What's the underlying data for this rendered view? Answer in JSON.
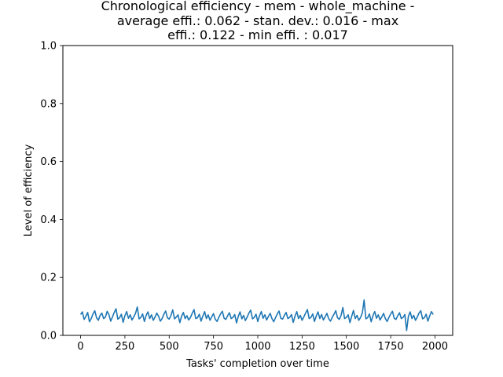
{
  "chart_data": {
    "type": "line",
    "title_lines": [
      "Chronological efficiency - mem - whole_machine -",
      "average effi.: 0.062 - stan. dev.: 0.016 - max",
      "effi.: 0.122 - min effi. : 0.017"
    ],
    "xlabel": "Tasks' completion over time",
    "ylabel": "Level of efficiency",
    "xlim": [
      -100,
      2100
    ],
    "ylim": [
      0,
      1.0
    ],
    "x_ticks": [
      0,
      250,
      500,
      750,
      1000,
      1250,
      1500,
      1750,
      2000
    ],
    "y_ticks": [
      0.0,
      0.2,
      0.4,
      0.6,
      0.8,
      1.0
    ],
    "y_tick_labels": [
      "0.0",
      "0.2",
      "0.4",
      "0.6",
      "0.8",
      "1.0"
    ],
    "grid": false,
    "series": [
      {
        "color": "#1f77b4",
        "x_start": 0,
        "x_step": 10,
        "values": [
          0.072,
          0.081,
          0.055,
          0.066,
          0.079,
          0.047,
          0.058,
          0.074,
          0.085,
          0.061,
          0.052,
          0.069,
          0.077,
          0.058,
          0.063,
          0.083,
          0.071,
          0.049,
          0.064,
          0.079,
          0.092,
          0.056,
          0.061,
          0.073,
          0.045,
          0.068,
          0.082,
          0.059,
          0.071,
          0.053,
          0.064,
          0.076,
          0.098,
          0.057,
          0.062,
          0.074,
          0.048,
          0.069,
          0.081,
          0.058,
          0.071,
          0.052,
          0.063,
          0.077,
          0.066,
          0.049,
          0.058,
          0.073,
          0.084,
          0.061,
          0.056,
          0.069,
          0.088,
          0.057,
          0.063,
          0.071,
          0.044,
          0.066,
          0.079,
          0.058,
          0.068,
          0.053,
          0.062,
          0.076,
          0.089,
          0.058,
          0.061,
          0.073,
          0.049,
          0.067,
          0.082,
          0.058,
          0.071,
          0.052,
          0.064,
          0.075,
          0.056,
          0.048,
          0.062,
          0.074,
          0.083,
          0.059,
          0.055,
          0.068,
          0.078,
          0.058,
          0.062,
          0.072,
          0.043,
          0.066,
          0.081,
          0.057,
          0.069,
          0.051,
          0.063,
          0.077,
          0.087,
          0.057,
          0.062,
          0.073,
          0.048,
          0.068,
          0.082,
          0.059,
          0.071,
          0.053,
          0.065,
          0.076,
          0.058,
          0.047,
          0.061,
          0.074,
          0.084,
          0.059,
          0.056,
          0.069,
          0.079,
          0.058,
          0.062,
          0.072,
          0.045,
          0.066,
          0.082,
          0.058,
          0.069,
          0.052,
          0.064,
          0.077,
          0.089,
          0.058,
          0.062,
          0.074,
          0.048,
          0.067,
          0.081,
          0.058,
          0.072,
          0.053,
          0.064,
          0.076,
          0.058,
          0.049,
          0.062,
          0.073,
          0.085,
          0.061,
          0.055,
          0.069,
          0.096,
          0.058,
          0.062,
          0.071,
          0.044,
          0.066,
          0.086,
          0.058,
          0.069,
          0.052,
          0.062,
          0.077,
          0.122,
          0.057,
          0.061,
          0.074,
          0.047,
          0.068,
          0.082,
          0.059,
          0.071,
          0.053,
          0.064,
          0.076,
          0.058,
          0.048,
          0.062,
          0.074,
          0.083,
          0.059,
          0.055,
          0.068,
          0.078,
          0.058,
          0.062,
          0.072,
          0.017,
          0.066,
          0.081,
          0.058,
          0.069,
          0.052,
          0.063,
          0.077,
          0.085,
          0.057,
          0.061,
          0.073,
          0.049,
          0.067,
          0.082,
          0.072
        ]
      }
    ]
  }
}
